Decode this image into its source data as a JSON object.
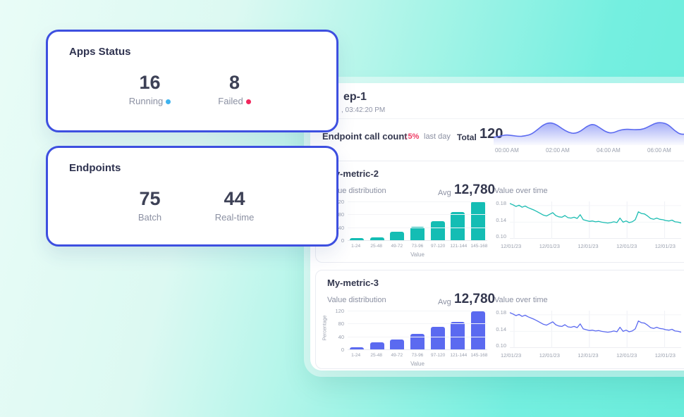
{
  "colors": {
    "card_border_blue": "#3d4fe0",
    "teal_bar": "#14bdb4",
    "teal_line": "#1cbdb2",
    "purple": "#5b6af0",
    "pink_change": "#ee3b63",
    "running_dot": "#3eb3ef",
    "failed_dot": "#f1265c"
  },
  "apps_status_card": {
    "title": "Apps Status",
    "stats": [
      {
        "value": "16",
        "label": "Running",
        "dot_color": "#3eb3ef"
      },
      {
        "value": "8",
        "label": "Failed",
        "dot_color": "#f1265c"
      }
    ]
  },
  "endpoints_card": {
    "title": "Endpoints",
    "stats": [
      {
        "value": "75",
        "label": "Batch"
      },
      {
        "value": "44",
        "label": "Real-time"
      }
    ]
  },
  "dashboard": {
    "title_visible": "ep-1",
    "timestamp_visible": ", 03:42:20 PM",
    "endpoint_call_count": {
      "label": "Endpoint call count",
      "change": "↓5%",
      "change_period": "last day",
      "total_label": "Total",
      "total_value": "120"
    },
    "metric2": {
      "title": "My-metric-2",
      "left_subtitle": "Value distribution",
      "avg_label": "Avg",
      "avg_value": "12,780",
      "right_subtitle": "Value over time"
    },
    "metric3": {
      "title": "My-metric-3",
      "left_subtitle": "Value distribution",
      "avg_label": "Avg",
      "avg_value": "12,780",
      "right_subtitle": "Value over time"
    }
  },
  "chart_data": [
    {
      "id": "endpoint_sparkline",
      "type": "area",
      "title": "Endpoint call count",
      "color": "#5b6af0",
      "x_labels": [
        "00:00 AM",
        "02:00 AM",
        "04:00 AM",
        "06:00 AM"
      ],
      "values": [
        0.22,
        0.27,
        0.33,
        0.3,
        0.26,
        0.28,
        0.35,
        0.55,
        0.78,
        0.88,
        0.8,
        0.6,
        0.44,
        0.38,
        0.5,
        0.72,
        0.82,
        0.65,
        0.46,
        0.4,
        0.52,
        0.58,
        0.57,
        0.56,
        0.58,
        0.72,
        0.86,
        0.88,
        0.78,
        0.52,
        0.34,
        0.38,
        0.45,
        0.38
      ]
    },
    {
      "id": "m2_dist",
      "type": "bar",
      "title": "Value distribution",
      "color": "#14bdb4",
      "categories": [
        "1-24",
        "25-48",
        "49-72",
        "73-96",
        "97-120",
        "121-144",
        "145-168"
      ],
      "values": [
        6,
        9,
        27,
        41,
        58,
        88,
        120
      ],
      "ymax": 120,
      "yticks": [
        "120",
        "80",
        "40",
        "0"
      ],
      "xlabel": "Value",
      "ylabel": "Percentage"
    },
    {
      "id": "m2_line",
      "type": "line",
      "title": "Value over time",
      "color": "#1cbdb2",
      "ylim": [
        0.1,
        0.19
      ],
      "yticks": [
        "0.18",
        "0.14",
        "0.10"
      ],
      "x_labels": [
        "12/01/23",
        "12/01/23",
        "12/01/23",
        "12/01/23",
        "12/01/23"
      ],
      "values": [
        0.185,
        0.182,
        0.178,
        0.181,
        0.176,
        0.179,
        0.175,
        0.172,
        0.169,
        0.165,
        0.161,
        0.157,
        0.155,
        0.159,
        0.163,
        0.156,
        0.153,
        0.152,
        0.156,
        0.151,
        0.15,
        0.152,
        0.149,
        0.158,
        0.146,
        0.144,
        0.142,
        0.143,
        0.141,
        0.142,
        0.14,
        0.139,
        0.138,
        0.139,
        0.141,
        0.139,
        0.15,
        0.14,
        0.143,
        0.139,
        0.141,
        0.146,
        0.165,
        0.161,
        0.16,
        0.155,
        0.149,
        0.147,
        0.15,
        0.147,
        0.146,
        0.144,
        0.143,
        0.145,
        0.141,
        0.14,
        0.138
      ]
    },
    {
      "id": "m3_dist",
      "type": "bar",
      "title": "Value distribution",
      "color": "#5b6af0",
      "categories": [
        "1-24",
        "25-48",
        "49-72",
        "73-96",
        "97-120",
        "121-144",
        "145-168"
      ],
      "values": [
        6,
        22,
        31,
        47,
        69,
        86,
        118
      ],
      "ymax": 120,
      "yticks": [
        "120",
        "80",
        "40",
        "0"
      ],
      "xlabel": "Value",
      "ylabel": "Percentage"
    },
    {
      "id": "m3_line",
      "type": "line",
      "title": "Value over time",
      "color": "#5b6af0",
      "ylim": [
        0.1,
        0.19
      ],
      "yticks": [
        "0.18",
        "0.14",
        "0.10"
      ],
      "x_labels": [
        "12/01/23",
        "12/01/23",
        "12/01/23",
        "12/01/23",
        "12/01/23"
      ],
      "values": [
        0.185,
        0.182,
        0.178,
        0.181,
        0.176,
        0.179,
        0.175,
        0.172,
        0.169,
        0.165,
        0.161,
        0.157,
        0.155,
        0.159,
        0.163,
        0.156,
        0.153,
        0.152,
        0.156,
        0.151,
        0.15,
        0.152,
        0.149,
        0.158,
        0.146,
        0.144,
        0.142,
        0.143,
        0.141,
        0.142,
        0.14,
        0.139,
        0.138,
        0.139,
        0.141,
        0.139,
        0.15,
        0.14,
        0.143,
        0.139,
        0.141,
        0.146,
        0.165,
        0.161,
        0.16,
        0.155,
        0.149,
        0.147,
        0.15,
        0.147,
        0.146,
        0.144,
        0.143,
        0.145,
        0.141,
        0.14,
        0.138
      ]
    }
  ]
}
